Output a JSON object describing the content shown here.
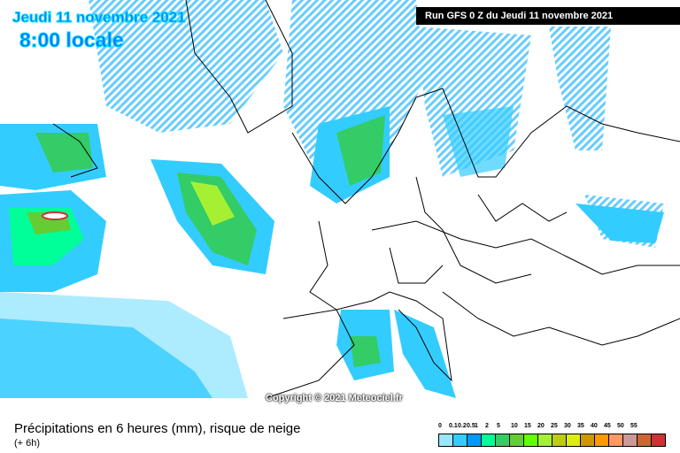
{
  "header": {
    "date": "Jeudi 11 novembre 2021",
    "time": "8:00 locale",
    "run": "Run GFS 0 Z du Jeudi 11 novembre 2021"
  },
  "copyright": "Copyright © 2021 Meteociel.fr",
  "footer": {
    "caption": "Précipitations en 6 heures (mm), risque de neige",
    "subcaption": "(+ 6h)"
  },
  "legend": {
    "labels": [
      "0",
      "0.1",
      "0.2",
      "0.5",
      "1",
      "2",
      "5",
      "10",
      "15",
      "20",
      "25",
      "30",
      "35",
      "40",
      "45",
      "50",
      "55"
    ],
    "colors": [
      "#ffffff",
      "#99e6ff",
      "#33ccff",
      "#0099ff",
      "#00ff99",
      "#33cc66",
      "#66cc33",
      "#66ff00",
      "#a6f033",
      "#bbcc11",
      "#dded11",
      "#cc9900",
      "#ff9900",
      "#ff9966",
      "#cc9999",
      "#cc6633",
      "#cc3333"
    ]
  }
}
